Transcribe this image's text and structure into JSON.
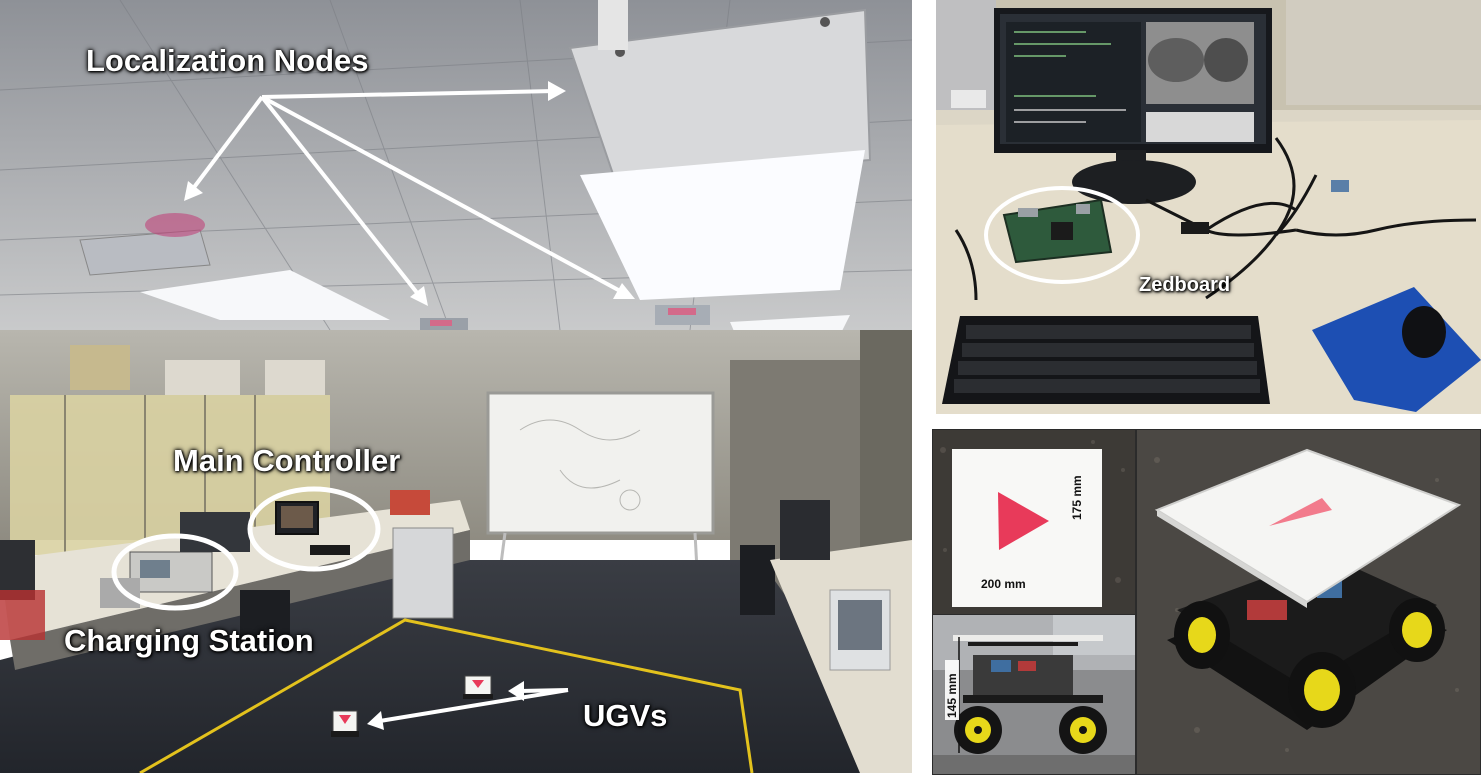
{
  "lab_photo": {
    "labels": {
      "localization_nodes": "Localization Nodes",
      "main_controller": "Main Controller",
      "charging_station": "Charging Station",
      "ugvs": "UGVs"
    }
  },
  "zedboard_photo": {
    "label": "Zedboard"
  },
  "marker_photo": {
    "width_label": "200 mm",
    "height_label": "175 mm"
  },
  "side_view_photo": {
    "height_label": "145 mm"
  },
  "colors": {
    "annotation": "#ffffff",
    "marker": "#e83a5a",
    "floor_tape": "#e3c21d",
    "wheel": "#e7d81a",
    "mousepad": "#1d4fb3"
  }
}
